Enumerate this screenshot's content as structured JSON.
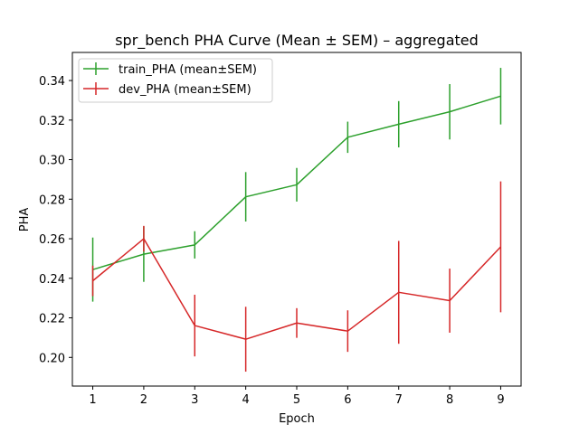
{
  "chart_data": {
    "type": "line",
    "title": "spr_bench PHA Curve (Mean ± SEM) – aggregated",
    "xlabel": "Epoch",
    "ylabel": "PHA",
    "x": [
      1,
      2,
      3,
      4,
      5,
      6,
      7,
      8,
      9
    ],
    "xlim": [
      0.6,
      9.4
    ],
    "ylim": [
      0.1855,
      0.3542
    ],
    "yticks": [
      0.2,
      0.22,
      0.24,
      0.26,
      0.28,
      0.3,
      0.32,
      0.34
    ],
    "ytick_labels": [
      "0.20",
      "0.22",
      "0.24",
      "0.26",
      "0.28",
      "0.30",
      "0.32",
      "0.34"
    ],
    "xtick_labels": [
      "1",
      "2",
      "3",
      "4",
      "5",
      "6",
      "7",
      "8",
      "9"
    ],
    "grid": false,
    "legend_position": "top-left",
    "series": [
      {
        "name": "train_PHA (mean±SEM)",
        "color": "#2ca02c",
        "values": [
          0.2444,
          0.2522,
          0.2569,
          0.2812,
          0.2873,
          0.3113,
          0.3179,
          0.3242,
          0.3321
        ],
        "errors": [
          0.0162,
          0.014,
          0.0069,
          0.0125,
          0.0085,
          0.0079,
          0.0117,
          0.014,
          0.0143
        ]
      },
      {
        "name": "dev_PHA (mean±SEM)",
        "color": "#d62728",
        "values": [
          0.2387,
          0.26,
          0.2161,
          0.2092,
          0.2174,
          0.2133,
          0.2329,
          0.2287,
          0.2559
        ],
        "errors": [
          0.0077,
          0.0065,
          0.0156,
          0.0164,
          0.0075,
          0.0105,
          0.026,
          0.0162,
          0.0331
        ]
      }
    ]
  }
}
